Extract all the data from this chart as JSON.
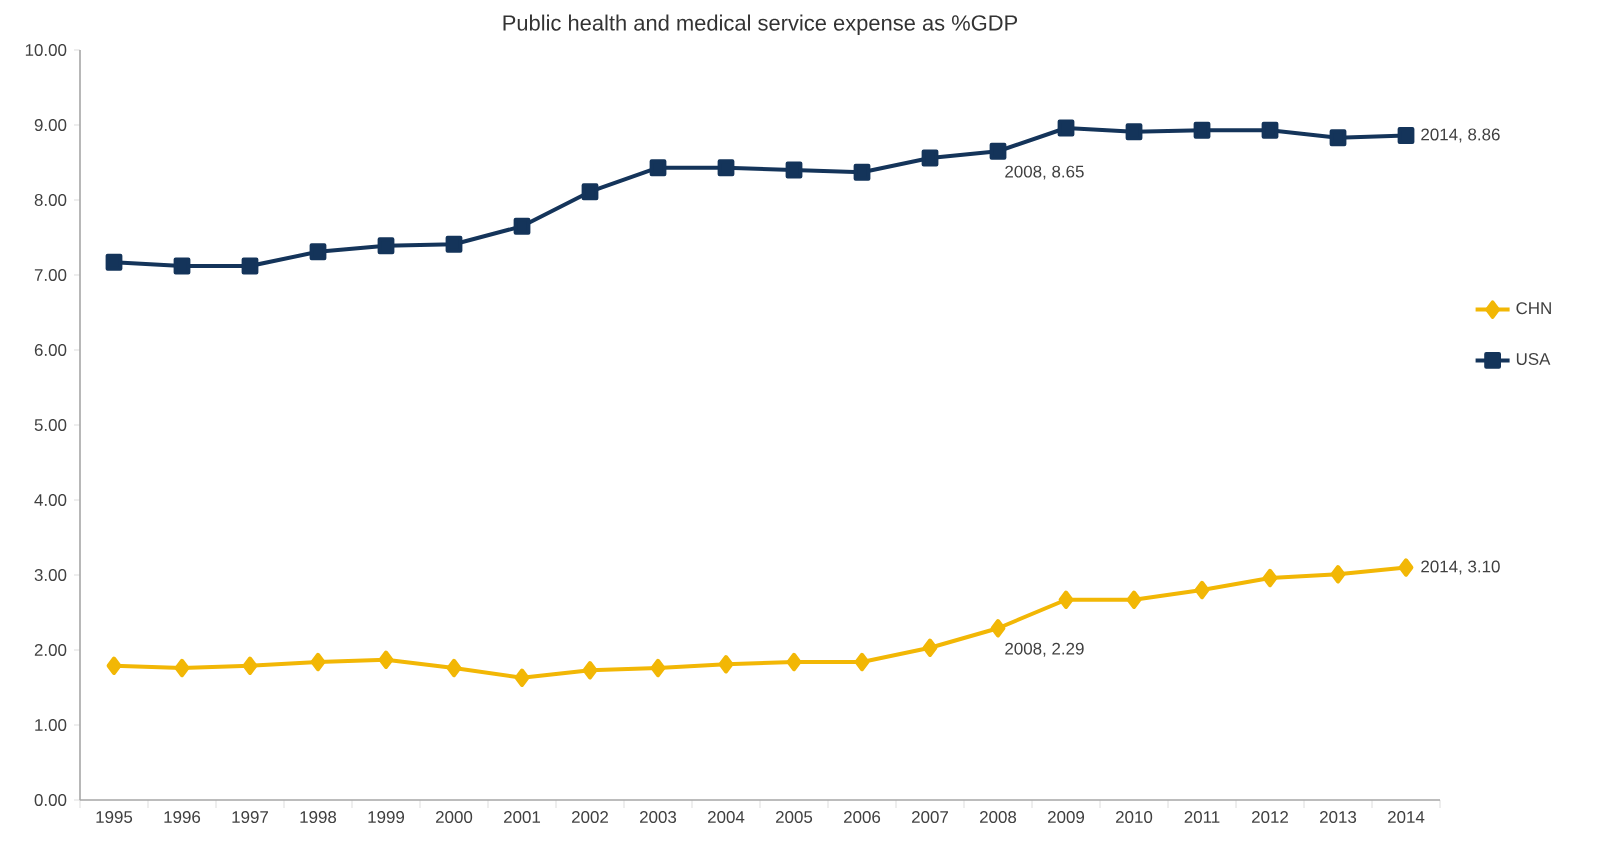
{
  "chart_data": {
    "type": "line",
    "title": "Public health and medical service expense as %GDP",
    "categories": [
      "1995",
      "1996",
      "1997",
      "1998",
      "1999",
      "2000",
      "2001",
      "2002",
      "2003",
      "2004",
      "2005",
      "2006",
      "2007",
      "2008",
      "2009",
      "2010",
      "2011",
      "2012",
      "2013",
      "2014"
    ],
    "series": [
      {
        "name": "CHN",
        "color": "#f2b705",
        "marker": "diamond",
        "values": [
          1.79,
          1.76,
          1.79,
          1.84,
          1.87,
          1.76,
          1.63,
          1.73,
          1.76,
          1.81,
          1.84,
          1.84,
          2.03,
          2.29,
          2.67,
          2.67,
          2.8,
          2.96,
          3.01,
          3.1
        ]
      },
      {
        "name": "USA",
        "color": "#14345a",
        "marker": "square",
        "values": [
          7.17,
          7.12,
          7.12,
          7.31,
          7.39,
          7.41,
          7.65,
          8.11,
          8.43,
          8.43,
          8.4,
          8.37,
          8.56,
          8.65,
          8.96,
          8.91,
          8.93,
          8.93,
          8.83,
          8.86
        ]
      }
    ],
    "ylim": [
      0,
      10
    ],
    "yticks": [
      {
        "value": 0,
        "label": "0.00"
      },
      {
        "value": 1,
        "label": "1.00"
      },
      {
        "value": 2,
        "label": "2.00"
      },
      {
        "value": 3,
        "label": "3.00"
      },
      {
        "value": 4,
        "label": "4.00"
      },
      {
        "value": 5,
        "label": "5.00"
      },
      {
        "value": 6,
        "label": "6.00"
      },
      {
        "value": 7,
        "label": "7.00"
      },
      {
        "value": 8,
        "label": "8.00"
      },
      {
        "value": 9,
        "label": "9.00"
      },
      {
        "value": 10,
        "label": "10.00"
      }
    ],
    "grid": false,
    "legend": "right",
    "line_style": "solid",
    "annotations": [
      {
        "text": "2008, 8.65",
        "x": "2008",
        "y": 8.65
      },
      {
        "text": "2014, 8.86",
        "x": "2014",
        "y": 8.86
      },
      {
        "text": "2008, 2.29",
        "x": "2008",
        "y": 2.29
      },
      {
        "text": "2014, 3.10",
        "x": "2014",
        "y": 3.1
      }
    ]
  }
}
